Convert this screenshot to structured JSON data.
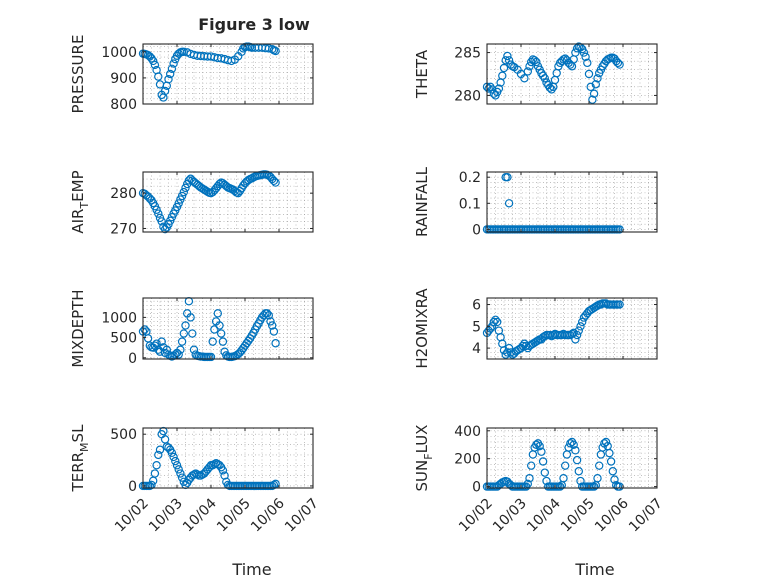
{
  "figure": {
    "title": "Figure 3 low",
    "x_label": "Time",
    "x_tick_labels": [
      "10/02",
      "10/03",
      "10/04",
      "10/05",
      "10/06",
      "10/07"
    ]
  },
  "colors": {
    "marker": "#0072BD",
    "axis": "#262626",
    "background": "#ffffff"
  },
  "chart_data": [
    {
      "type": "scatter",
      "ylabel": "PRESSURE",
      "title": "Figure 3 low",
      "xlabel": "",
      "xlim": [
        0,
        5
      ],
      "ylim": [
        800,
        1030
      ],
      "yticks": [
        800,
        900,
        1000
      ],
      "grid": true,
      "x": [
        0.0,
        0.05,
        0.1,
        0.15,
        0.2,
        0.25,
        0.3,
        0.35,
        0.4,
        0.45,
        0.5,
        0.55,
        0.6,
        0.65,
        0.7,
        0.75,
        0.8,
        0.85,
        0.9,
        0.95,
        1.0,
        1.05,
        1.1,
        1.15,
        1.2,
        1.3,
        1.4,
        1.5,
        1.6,
        1.7,
        1.8,
        1.9,
        2.0,
        2.1,
        2.2,
        2.3,
        2.4,
        2.5,
        2.6,
        2.7,
        2.8,
        2.9,
        2.95,
        3.0,
        3.05,
        3.1,
        3.15,
        3.2,
        3.3,
        3.4,
        3.5,
        3.6,
        3.7,
        3.8,
        3.85,
        3.9
      ],
      "y": [
        993,
        992,
        990,
        987,
        982,
        975,
        965,
        950,
        930,
        905,
        875,
        835,
        825,
        850,
        870,
        895,
        915,
        935,
        955,
        972,
        985,
        993,
        998,
        1000,
        1000,
        998,
        992,
        988,
        985,
        984,
        983,
        982,
        982,
        979,
        976,
        975,
        972,
        968,
        965,
        970,
        983,
        1000,
        1013,
        1018,
        1020,
        1020,
        1018,
        1016,
        1016,
        1016,
        1016,
        1014,
        1013,
        1010,
        1006,
        1003
      ]
    },
    {
      "type": "scatter",
      "ylabel": "THETA",
      "title": "",
      "xlabel": "",
      "xlim": [
        0,
        5
      ],
      "ylim": [
        279,
        286
      ],
      "yticks": [
        280,
        285
      ],
      "grid": true,
      "x": [
        0.0,
        0.05,
        0.1,
        0.15,
        0.2,
        0.25,
        0.3,
        0.35,
        0.4,
        0.45,
        0.5,
        0.55,
        0.6,
        0.65,
        0.7,
        0.75,
        0.8,
        0.9,
        1.0,
        1.1,
        1.2,
        1.25,
        1.3,
        1.35,
        1.4,
        1.45,
        1.5,
        1.55,
        1.6,
        1.65,
        1.7,
        1.75,
        1.8,
        1.85,
        1.9,
        1.95,
        2.0,
        2.05,
        2.1,
        2.15,
        2.2,
        2.25,
        2.3,
        2.35,
        2.4,
        2.45,
        2.5,
        2.55,
        2.6,
        2.65,
        2.7,
        2.75,
        2.8,
        2.85,
        2.9,
        2.95,
        3.0,
        3.05,
        3.1,
        3.15,
        3.2,
        3.25,
        3.3,
        3.35,
        3.4,
        3.45,
        3.5,
        3.55,
        3.6,
        3.65,
        3.7,
        3.75,
        3.8,
        3.85,
        3.9
      ],
      "y": [
        281.0,
        280.8,
        281.0,
        280.7,
        280.2,
        280.0,
        280.4,
        280.8,
        281.5,
        282.3,
        283.2,
        284.1,
        284.6,
        284.1,
        283.6,
        283.4,
        283.3,
        283.0,
        282.5,
        282.0,
        282.8,
        283.4,
        283.9,
        284.2,
        284.1,
        283.9,
        283.4,
        283.0,
        282.6,
        282.3,
        282.0,
        281.5,
        281.2,
        280.9,
        280.7,
        281.0,
        281.8,
        282.6,
        283.4,
        283.8,
        284.0,
        284.2,
        284.3,
        284.1,
        283.8,
        283.6,
        283.4,
        284.2,
        285.0,
        285.5,
        285.7,
        285.6,
        285.4,
        285.0,
        284.5,
        283.8,
        282.5,
        281.0,
        279.5,
        280.2,
        281.3,
        282.0,
        282.6,
        283.0,
        283.4,
        283.7,
        284.0,
        284.2,
        284.3,
        284.4,
        284.4,
        284.3,
        284.0,
        283.8,
        283.6
      ]
    },
    {
      "type": "scatter",
      "ylabel": "AIR_TEMP",
      "title": "",
      "xlabel": "",
      "xlim": [
        0,
        5
      ],
      "ylim": [
        269,
        286
      ],
      "yticks": [
        270,
        280
      ],
      "grid": true,
      "x": [
        0.0,
        0.05,
        0.1,
        0.15,
        0.2,
        0.25,
        0.3,
        0.35,
        0.4,
        0.45,
        0.5,
        0.55,
        0.6,
        0.65,
        0.7,
        0.75,
        0.8,
        0.85,
        0.9,
        0.95,
        1.0,
        1.05,
        1.1,
        1.15,
        1.2,
        1.25,
        1.3,
        1.35,
        1.4,
        1.45,
        1.5,
        1.55,
        1.6,
        1.65,
        1.7,
        1.75,
        1.8,
        1.85,
        1.9,
        1.95,
        2.0,
        2.05,
        2.1,
        2.15,
        2.2,
        2.25,
        2.3,
        2.35,
        2.4,
        2.45,
        2.5,
        2.55,
        2.6,
        2.65,
        2.7,
        2.75,
        2.8,
        2.85,
        2.9,
        2.95,
        3.0,
        3.05,
        3.1,
        3.15,
        3.2,
        3.25,
        3.3,
        3.35,
        3.4,
        3.45,
        3.5,
        3.55,
        3.6,
        3.65,
        3.7,
        3.75,
        3.8,
        3.85,
        3.9
      ],
      "y": [
        280.0,
        279.8,
        279.4,
        279.0,
        278.5,
        278.0,
        277.2,
        276.3,
        275.3,
        274.2,
        273.0,
        272.0,
        270.5,
        269.8,
        270.3,
        271.2,
        272.2,
        273.2,
        274.2,
        275.1,
        276.1,
        277.1,
        278.2,
        279.2,
        280.3,
        281.5,
        282.6,
        283.6,
        284.1,
        283.6,
        283.2,
        282.8,
        282.4,
        282.0,
        281.6,
        281.3,
        281.0,
        280.7,
        280.4,
        280.1,
        280.0,
        280.3,
        280.8,
        281.4,
        282.0,
        282.6,
        283.0,
        282.8,
        282.4,
        282.0,
        281.6,
        281.4,
        281.2,
        281.0,
        280.6,
        280.2,
        280.0,
        280.6,
        281.4,
        282.2,
        282.8,
        283.3,
        283.7,
        284.0,
        284.2,
        284.5,
        284.7,
        284.9,
        285.0,
        285.1,
        285.2,
        285.3,
        285.3,
        285.2,
        285.0,
        284.6,
        284.0,
        283.5,
        283.0
      ]
    },
    {
      "type": "scatter",
      "ylabel": "RAINFALL",
      "title": "",
      "xlabel": "",
      "xlim": [
        0,
        5
      ],
      "ylim": [
        -0.01,
        0.22
      ],
      "yticks": [
        0,
        0.1,
        0.2
      ],
      "grid": true,
      "x": [
        0.0,
        0.05,
        0.1,
        0.15,
        0.2,
        0.25,
        0.3,
        0.35,
        0.4,
        0.45,
        0.5,
        0.55,
        0.6,
        0.65,
        0.7,
        0.75,
        0.8,
        0.85,
        0.9,
        0.95,
        1.0,
        1.05,
        1.1,
        1.15,
        1.2,
        1.25,
        1.3,
        1.35,
        1.4,
        1.45,
        1.5,
        1.55,
        1.6,
        1.65,
        1.7,
        1.75,
        1.8,
        1.85,
        1.9,
        1.95,
        2.0,
        2.05,
        2.1,
        2.15,
        2.2,
        2.25,
        2.3,
        2.35,
        2.4,
        2.45,
        2.5,
        2.55,
        2.6,
        2.65,
        2.7,
        2.75,
        2.8,
        2.85,
        2.9,
        2.95,
        3.0,
        3.05,
        3.1,
        3.15,
        3.2,
        3.25,
        3.3,
        3.35,
        3.4,
        3.45,
        3.5,
        3.55,
        3.6,
        3.65,
        3.7,
        3.75,
        3.8,
        3.85,
        3.9,
        0.55,
        0.6,
        0.65
      ],
      "y": [
        0,
        0,
        0,
        0,
        0,
        0,
        0,
        0,
        0,
        0,
        0,
        0,
        0,
        0,
        0,
        0,
        0,
        0,
        0,
        0,
        0,
        0,
        0,
        0,
        0,
        0,
        0,
        0,
        0,
        0,
        0,
        0,
        0,
        0,
        0,
        0,
        0,
        0,
        0,
        0,
        0,
        0,
        0,
        0,
        0,
        0,
        0,
        0,
        0,
        0,
        0,
        0,
        0,
        0,
        0,
        0,
        0,
        0,
        0,
        0,
        0,
        0,
        0,
        0,
        0,
        0,
        0,
        0,
        0,
        0,
        0,
        0,
        0,
        0,
        0,
        0,
        0,
        0,
        0,
        0.2,
        0.2,
        0.1
      ]
    },
    {
      "type": "scatter",
      "ylabel": "MIXDEPTH",
      "title": "",
      "xlabel": "",
      "xlim": [
        0,
        5
      ],
      "ylim": [
        -30,
        1480
      ],
      "yticks": [
        0,
        500,
        1000
      ],
      "grid": true,
      "x": [
        0.0,
        0.05,
        0.1,
        0.15,
        0.2,
        0.25,
        0.3,
        0.35,
        0.4,
        0.45,
        0.5,
        0.55,
        0.6,
        0.65,
        0.7,
        0.75,
        0.8,
        0.85,
        0.9,
        0.95,
        1.0,
        1.05,
        1.1,
        1.15,
        1.2,
        1.25,
        1.3,
        1.35,
        1.4,
        1.45,
        1.5,
        1.55,
        1.6,
        1.65,
        1.7,
        1.75,
        1.8,
        1.85,
        1.9,
        1.95,
        2.0,
        2.05,
        2.1,
        2.15,
        2.2,
        2.25,
        2.3,
        2.35,
        2.4,
        2.45,
        2.5,
        2.55,
        2.6,
        2.65,
        2.7,
        2.75,
        2.8,
        2.85,
        2.9,
        2.95,
        3.0,
        3.05,
        3.1,
        3.15,
        3.2,
        3.25,
        3.3,
        3.35,
        3.4,
        3.45,
        3.5,
        3.55,
        3.6,
        3.65,
        3.7,
        3.75,
        3.8,
        3.85,
        3.9
      ],
      "y": [
        650,
        700,
        650,
        480,
        300,
        260,
        250,
        300,
        350,
        200,
        150,
        400,
        260,
        120,
        200,
        80,
        50,
        30,
        50,
        80,
        120,
        80,
        200,
        400,
        600,
        800,
        1100,
        1400,
        1000,
        600,
        200,
        80,
        50,
        40,
        30,
        30,
        20,
        20,
        20,
        20,
        20,
        400,
        700,
        900,
        1100,
        800,
        600,
        400,
        150,
        60,
        30,
        20,
        20,
        30,
        40,
        60,
        90,
        130,
        180,
        240,
        300,
        360,
        420,
        480,
        550,
        620,
        700,
        780,
        850,
        930,
        1000,
        1050,
        1100,
        1100,
        1050,
        900,
        800,
        650,
        360
      ]
    },
    {
      "type": "scatter",
      "ylabel": "H2OMIXRA",
      "title": "",
      "xlabel": "",
      "xlim": [
        0,
        5
      ],
      "ylim": [
        3.5,
        6.3
      ],
      "yticks": [
        4,
        5,
        6
      ],
      "grid": true,
      "x": [
        0.0,
        0.05,
        0.1,
        0.15,
        0.2,
        0.25,
        0.3,
        0.35,
        0.4,
        0.45,
        0.5,
        0.55,
        0.6,
        0.65,
        0.7,
        0.75,
        0.8,
        0.85,
        0.9,
        0.95,
        1.0,
        1.05,
        1.1,
        1.15,
        1.2,
        1.25,
        1.3,
        1.35,
        1.4,
        1.45,
        1.5,
        1.55,
        1.6,
        1.65,
        1.7,
        1.75,
        1.8,
        1.85,
        1.9,
        1.95,
        2.0,
        2.05,
        2.1,
        2.15,
        2.2,
        2.25,
        2.3,
        2.35,
        2.4,
        2.45,
        2.5,
        2.55,
        2.6,
        2.65,
        2.7,
        2.75,
        2.8,
        2.85,
        2.9,
        2.95,
        3.0,
        3.05,
        3.1,
        3.15,
        3.2,
        3.25,
        3.3,
        3.35,
        3.4,
        3.45,
        3.5,
        3.55,
        3.6,
        3.65,
        3.7,
        3.75,
        3.8,
        3.85,
        3.9
      ],
      "y": [
        4.7,
        4.8,
        4.9,
        5.0,
        5.2,
        5.3,
        5.2,
        4.8,
        4.5,
        4.2,
        3.9,
        3.7,
        3.8,
        4.0,
        3.8,
        3.7,
        3.75,
        3.85,
        3.9,
        3.95,
        4.0,
        4.1,
        4.2,
        4.1,
        4.0,
        4.1,
        4.15,
        4.2,
        4.25,
        4.3,
        4.35,
        4.4,
        4.4,
        4.5,
        4.55,
        4.6,
        4.6,
        4.6,
        4.55,
        4.6,
        4.65,
        4.6,
        4.6,
        4.6,
        4.6,
        4.65,
        4.6,
        4.6,
        4.6,
        4.6,
        4.65,
        4.7,
        4.4,
        4.6,
        4.8,
        5.0,
        5.2,
        5.4,
        5.5,
        5.6,
        5.7,
        5.75,
        5.8,
        5.85,
        5.9,
        5.95,
        6.0,
        6.0,
        6.05,
        6.05,
        6.05,
        6.0,
        6.0,
        6.0,
        6.0,
        6.0,
        6.0,
        6.0,
        6.0
      ]
    },
    {
      "type": "scatter",
      "ylabel": "TERR_MSL",
      "title": "",
      "xlabel": "",
      "xlim": [
        0,
        5
      ],
      "ylim": [
        -20,
        560
      ],
      "yticks": [
        0,
        500
      ],
      "grid": true,
      "x": [
        0.0,
        0.05,
        0.1,
        0.15,
        0.2,
        0.25,
        0.3,
        0.35,
        0.4,
        0.45,
        0.5,
        0.55,
        0.6,
        0.65,
        0.7,
        0.75,
        0.8,
        0.85,
        0.9,
        0.95,
        1.0,
        1.05,
        1.1,
        1.15,
        1.2,
        1.25,
        1.3,
        1.35,
        1.4,
        1.45,
        1.5,
        1.55,
        1.6,
        1.65,
        1.7,
        1.75,
        1.8,
        1.85,
        1.9,
        1.95,
        2.0,
        2.05,
        2.1,
        2.15,
        2.2,
        2.25,
        2.3,
        2.35,
        2.4,
        2.45,
        2.5,
        2.55,
        2.6,
        2.65,
        2.7,
        2.75,
        2.8,
        2.85,
        2.9,
        2.95,
        3.0,
        3.05,
        3.1,
        3.15,
        3.2,
        3.25,
        3.3,
        3.35,
        3.4,
        3.45,
        3.5,
        3.55,
        3.6,
        3.65,
        3.7,
        3.75,
        3.8,
        3.85,
        3.9
      ],
      "y": [
        0,
        0,
        0,
        0,
        0,
        10,
        50,
        120,
        200,
        300,
        350,
        500,
        530,
        450,
        380,
        370,
        350,
        320,
        280,
        240,
        200,
        160,
        120,
        80,
        40,
        10,
        30,
        60,
        80,
        100,
        110,
        120,
        110,
        100,
        100,
        110,
        120,
        140,
        160,
        180,
        200,
        200,
        210,
        220,
        210,
        200,
        180,
        150,
        100,
        40,
        10,
        0,
        0,
        0,
        0,
        0,
        0,
        0,
        0,
        0,
        0,
        0,
        0,
        0,
        0,
        0,
        0,
        0,
        0,
        0,
        0,
        0,
        0,
        0,
        0,
        0,
        0,
        10,
        20
      ]
    },
    {
      "type": "scatter",
      "ylabel": "SUN_FLUX",
      "title": "",
      "xlabel": "",
      "xlim": [
        0,
        5
      ],
      "ylim": [
        -10,
        420
      ],
      "yticks": [
        0,
        200,
        400
      ],
      "grid": true,
      "x": [
        0.0,
        0.05,
        0.1,
        0.15,
        0.2,
        0.25,
        0.3,
        0.35,
        0.4,
        0.45,
        0.5,
        0.55,
        0.6,
        0.65,
        0.7,
        0.75,
        0.8,
        0.85,
        0.9,
        0.95,
        1.0,
        1.05,
        1.1,
        1.15,
        1.2,
        1.25,
        1.3,
        1.35,
        1.4,
        1.45,
        1.5,
        1.55,
        1.6,
        1.65,
        1.7,
        1.75,
        1.8,
        1.85,
        1.9,
        1.95,
        2.0,
        2.05,
        2.1,
        2.15,
        2.2,
        2.25,
        2.3,
        2.35,
        2.4,
        2.45,
        2.5,
        2.55,
        2.6,
        2.65,
        2.7,
        2.75,
        2.8,
        2.85,
        2.9,
        2.95,
        3.0,
        3.05,
        3.1,
        3.15,
        3.2,
        3.25,
        3.3,
        3.35,
        3.4,
        3.45,
        3.5,
        3.55,
        3.6,
        3.65,
        3.7,
        3.75,
        3.8,
        3.85,
        3.9
      ],
      "y": [
        0,
        0,
        0,
        0,
        0,
        0,
        0,
        10,
        20,
        30,
        35,
        40,
        35,
        20,
        10,
        0,
        0,
        0,
        0,
        0,
        0,
        0,
        0,
        0,
        20,
        60,
        150,
        230,
        280,
        300,
        310,
        290,
        250,
        180,
        100,
        40,
        0,
        0,
        0,
        0,
        0,
        0,
        0,
        0,
        10,
        60,
        150,
        230,
        280,
        310,
        320,
        300,
        260,
        190,
        110,
        40,
        0,
        0,
        0,
        0,
        0,
        0,
        0,
        0,
        10,
        60,
        150,
        230,
        280,
        310,
        320,
        290,
        240,
        180,
        110,
        50,
        10,
        0,
        0
      ]
    }
  ]
}
